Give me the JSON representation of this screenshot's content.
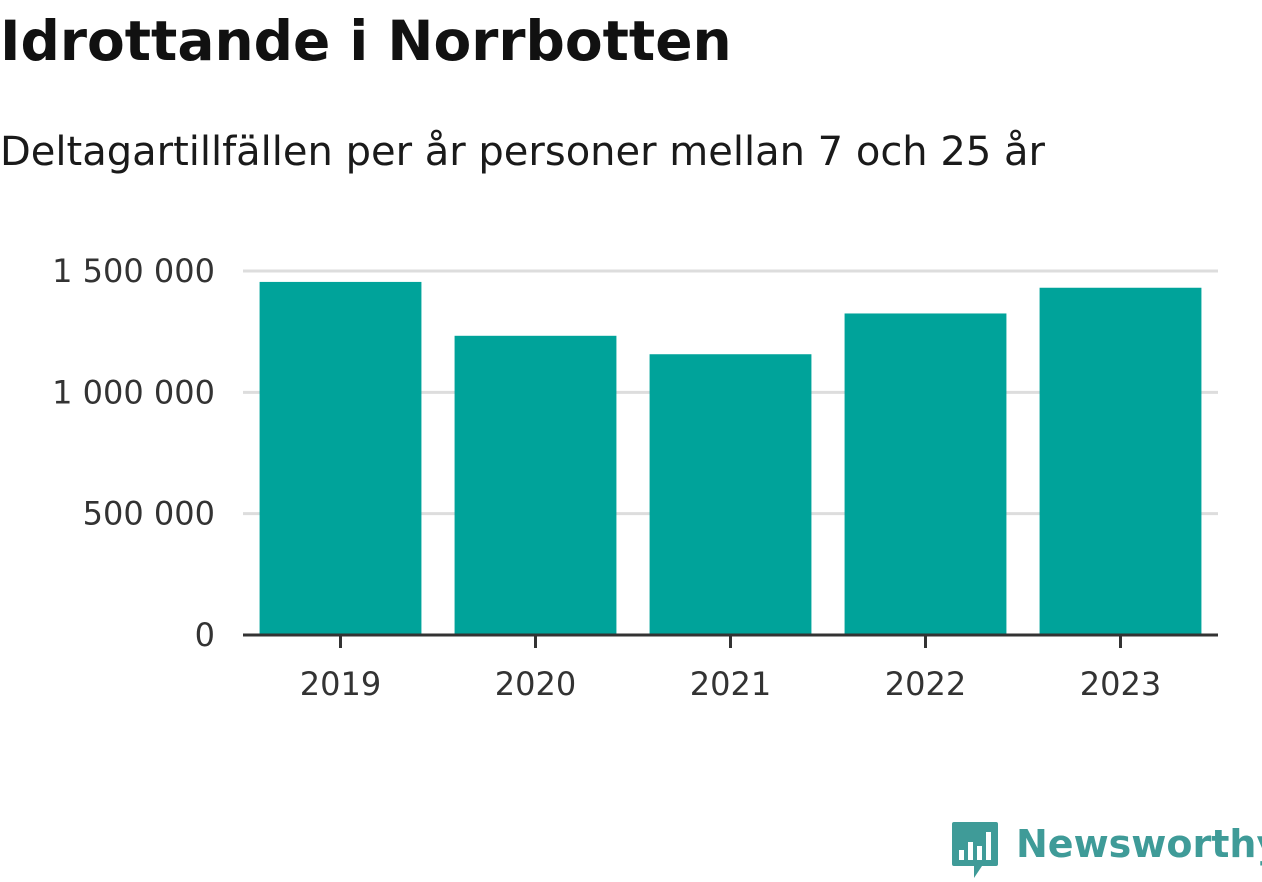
{
  "header": {
    "title": "Idrottande i Norrbotten",
    "subtitle": "Deltagartillfällen per år personer mellan 7 och 25 år"
  },
  "brand": {
    "name": "Newsworthy",
    "icon": "bar-chart-speech-bubble-icon",
    "color": "#3f9b98"
  },
  "chart_data": {
    "type": "bar",
    "title": "Idrottande i Norrbotten",
    "subtitle": "Deltagartillfällen per år personer mellan 7 och 25 år",
    "categories": [
      "2019",
      "2020",
      "2021",
      "2022",
      "2023"
    ],
    "values": [
      1455000,
      1233000,
      1157000,
      1325000,
      1431000
    ],
    "ylim": [
      0,
      1500000
    ],
    "yticks": [
      0,
      500000,
      1000000,
      1500000
    ],
    "ytick_labels": [
      "0",
      "500 000",
      "1 000 000",
      "1 500 000"
    ],
    "xlabel": "",
    "ylabel": "",
    "grid": true,
    "legend": "none",
    "bar_color": "#00a39a",
    "grid_color": "#dddddd",
    "axis_color": "#333333"
  }
}
